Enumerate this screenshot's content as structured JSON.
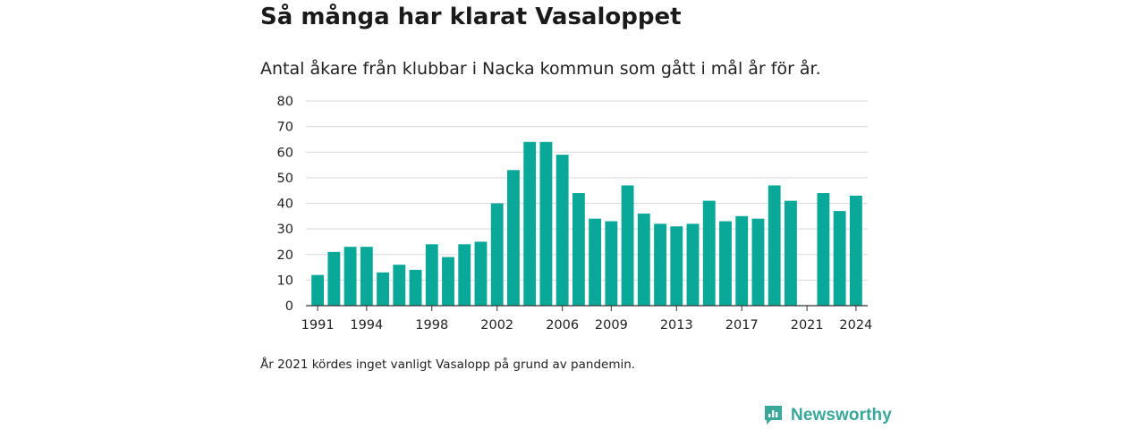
{
  "header": {
    "title": "Så många har klarat Vasaloppet",
    "subtitle": "Antal åkare från klubbar i Nacka kommun som gått i mål år för år."
  },
  "footer": {
    "note": "År 2021 kördes inget vanligt Vasalopp på grund av pandemin.",
    "brand": "Newsworthy",
    "brand_icon": "newsworthy-logo-icon"
  },
  "colors": {
    "bar": "#0aa898",
    "grid": "#d9d9d9",
    "axis": "#333333",
    "brand": "#3aa79b"
  },
  "chart_data": {
    "type": "bar",
    "categories": [
      "1991",
      "1992",
      "1993",
      "1994",
      "1995",
      "1996",
      "1997",
      "1998",
      "1999",
      "2000",
      "2001",
      "2002",
      "2003",
      "2004",
      "2005",
      "2006",
      "2007",
      "2008",
      "2009",
      "2010",
      "2011",
      "2012",
      "2013",
      "2014",
      "2015",
      "2016",
      "2017",
      "2018",
      "2019",
      "2020",
      "2021",
      "2022",
      "2023",
      "2024"
    ],
    "values": [
      12,
      21,
      23,
      23,
      13,
      16,
      14,
      24,
      19,
      24,
      25,
      40,
      53,
      64,
      64,
      59,
      44,
      34,
      33,
      47,
      36,
      32,
      31,
      32,
      41,
      33,
      35,
      34,
      47,
      41,
      null,
      44,
      37,
      43
    ],
    "x_tick_labels": [
      "1991",
      "1994",
      "1998",
      "2002",
      "2006",
      "2009",
      "2013",
      "2017",
      "2021",
      "2024"
    ],
    "y_ticks": [
      0,
      10,
      20,
      30,
      40,
      50,
      60,
      70,
      80
    ],
    "ylim": [
      0,
      80
    ],
    "title": "Så många har klarat Vasaloppet",
    "subtitle": "Antal åkare från klubbar i Nacka kommun som gått i mål år för år.",
    "xlabel": "",
    "ylabel": "",
    "grid": true,
    "legend": "none"
  }
}
